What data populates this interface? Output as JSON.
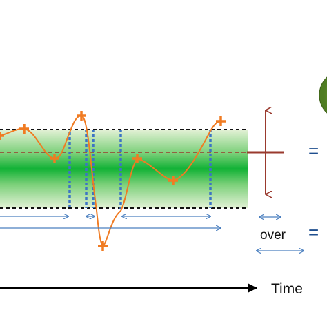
{
  "labels": {
    "time": "Time",
    "over": "over",
    "equals_top": "=",
    "equals_bottom": "="
  },
  "colors": {
    "band_green": "#1db33a",
    "band_edge": "#d6ecc4",
    "series": "#f07b22",
    "threshold_lines": "#3d74c4",
    "arrows_blue": "#4a7fbf",
    "mean_line": "#9a3a2e",
    "axis": "#000000",
    "circle_green": "#5f8f2a"
  }
}
